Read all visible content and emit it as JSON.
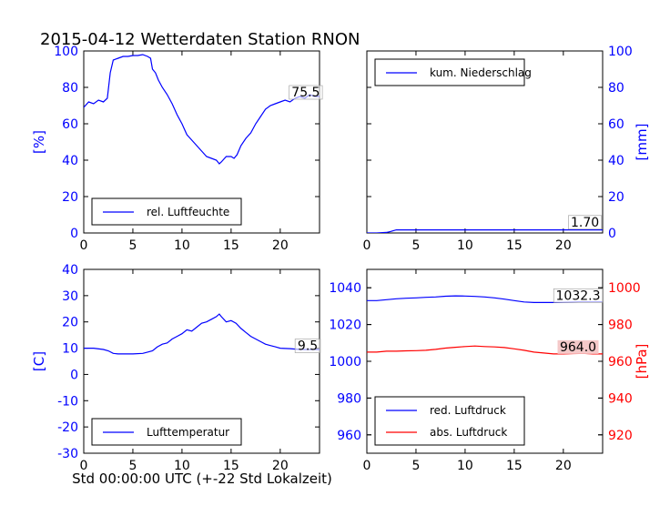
{
  "title": "2015-04-12 Wetterdaten Station RNON",
  "xlabel": "Std 00:00:00 UTC (+-22 Std Lokalzeit)",
  "colors": {
    "blue": "#0000ff",
    "red": "#ff0000",
    "axis": "#000000",
    "annot_bg_red": "#f4c8c8"
  },
  "chart_data": [
    {
      "id": "humidity",
      "type": "line",
      "xlim": [
        0,
        24
      ],
      "ylim": [
        0,
        100
      ],
      "xticks": [
        0,
        5,
        10,
        15,
        20
      ],
      "yticks": [
        0,
        20,
        40,
        60,
        80,
        100
      ],
      "ytick_side": "left",
      "ytick_color": "#0000ff",
      "ylabel": "[%]",
      "ylabel_side": "left",
      "ylabel_color": "#0000ff",
      "legend_position": "lower-left",
      "annotation": {
        "text": "75.5",
        "x": 22.6,
        "y": 76
      },
      "series": [
        {
          "name": "rel. Luftfeuchte",
          "color": "#0000ff",
          "x": [
            0,
            0.5,
            1,
            1.5,
            2,
            2.4,
            2.7,
            3,
            3.5,
            4,
            4.5,
            5,
            5.5,
            6,
            6.5,
            6.8,
            7,
            7.3,
            7.6,
            8,
            8.5,
            9,
            9.5,
            10,
            10.5,
            11,
            11.5,
            12,
            12.5,
            13,
            13.5,
            13.8,
            14,
            14.5,
            15,
            15.3,
            15.6,
            16,
            16.5,
            17,
            17.5,
            18,
            18.5,
            19,
            19.5,
            20,
            20.5,
            21,
            21.5,
            22,
            22.5,
            23,
            23.5,
            24
          ],
          "y": [
            69,
            72,
            71,
            73,
            72,
            74,
            88,
            95,
            96,
            97,
            97,
            97.5,
            97.5,
            98,
            97,
            96,
            90,
            88,
            84,
            80,
            76,
            71,
            65,
            60,
            54,
            51,
            48,
            45,
            42,
            41,
            40,
            38,
            39,
            42,
            42,
            41,
            43,
            48,
            52,
            55,
            60,
            64,
            68,
            70,
            71,
            72,
            73,
            72,
            74,
            75,
            74,
            76,
            75,
            75
          ]
        }
      ]
    },
    {
      "id": "precipitation",
      "type": "line",
      "xlim": [
        0,
        24
      ],
      "ylim": [
        0,
        100
      ],
      "xticks": [
        0,
        5,
        10,
        15,
        20
      ],
      "yticks": [
        0,
        20,
        40,
        60,
        80,
        100
      ],
      "ytick_side": "right",
      "ytick_color": "#0000ff",
      "ylabel": "[mm]",
      "ylabel_side": "right",
      "ylabel_color": "#0000ff",
      "legend_position": "upper-left",
      "annotation": {
        "text": "1.70",
        "x": 22.2,
        "y": 4.6
      },
      "series": [
        {
          "name": "kum. Niederschlag",
          "color": "#0000ff",
          "x": [
            0,
            1,
            2,
            2.4,
            2.8,
            3,
            5,
            8,
            10,
            12,
            15,
            18,
            20,
            22,
            24
          ],
          "y": [
            0,
            0,
            0.3,
            0.8,
            1.4,
            1.7,
            1.7,
            1.7,
            1.7,
            1.7,
            1.7,
            1.7,
            1.7,
            1.7,
            1.7
          ]
        }
      ]
    },
    {
      "id": "temperature",
      "type": "line",
      "xlim": [
        0,
        24
      ],
      "ylim": [
        -30,
        40
      ],
      "xticks": [
        0,
        5,
        10,
        15,
        20
      ],
      "yticks": [
        -30,
        -20,
        -10,
        0,
        10,
        20,
        30,
        40
      ],
      "ytick_side": "left",
      "ytick_color": "#0000ff",
      "ylabel": "[C]",
      "ylabel_side": "left",
      "ylabel_color": "#0000ff",
      "legend_position": "lower-left",
      "annotation": {
        "text": "9.5",
        "x": 22.8,
        "y": 10
      },
      "series": [
        {
          "name": "Lufttemperatur",
          "color": "#0000ff",
          "x": [
            0,
            1,
            2,
            2.5,
            3,
            3.5,
            4,
            5,
            6,
            6.5,
            7,
            7.5,
            8,
            8.5,
            9,
            9.5,
            10,
            10.5,
            11,
            11.5,
            12,
            12.5,
            13,
            13.5,
            13.8,
            14,
            14.5,
            15,
            15.5,
            16,
            16.5,
            17,
            17.5,
            18,
            18.5,
            19,
            19.5,
            20,
            21,
            22,
            23,
            24
          ],
          "y": [
            10,
            10,
            9.5,
            9,
            8,
            7.8,
            7.8,
            7.8,
            8,
            8.5,
            9,
            10.5,
            11.5,
            12,
            13.5,
            14.5,
            15.5,
            17,
            16.5,
            18,
            19.5,
            20,
            21,
            22,
            23,
            22,
            20,
            20.5,
            19.5,
            17.5,
            16,
            14.5,
            13.5,
            12.5,
            11.5,
            11,
            10.5,
            10,
            9.8,
            9.5,
            9.5,
            9.5
          ]
        }
      ]
    },
    {
      "id": "pressure",
      "type": "line",
      "xlim": [
        0,
        24
      ],
      "ylim_left": [
        950,
        1050
      ],
      "ylim_right": [
        910,
        1010
      ],
      "xticks": [
        0,
        5,
        10,
        15,
        20
      ],
      "yticks_left": [
        960,
        980,
        1000,
        1020,
        1040
      ],
      "yticks_left_color": "#0000ff",
      "yticks_right": [
        920,
        940,
        960,
        980,
        1000
      ],
      "yticks_right_color": "#ff0000",
      "ylabel": "[hPa]",
      "ylabel_side": "right",
      "ylabel_color": "#ff0000",
      "legend_position": "lower-left",
      "series": [
        {
          "name": "red. Luftdruck",
          "color": "#0000ff",
          "axis": "left",
          "annotation": {
            "text": "1032.3",
            "x": 21.5,
            "y": 1034.5
          },
          "x": [
            0,
            1,
            2,
            3,
            4,
            5,
            6,
            7,
            8,
            9,
            10,
            11,
            12,
            13,
            14,
            15,
            16,
            17,
            18,
            19,
            20,
            21,
            22,
            23,
            24
          ],
          "y": [
            1033,
            1033,
            1033.5,
            1034,
            1034.3,
            1034.5,
            1034.8,
            1035,
            1035.4,
            1035.6,
            1035.5,
            1035.3,
            1035,
            1034.5,
            1033.8,
            1033,
            1032.3,
            1032,
            1032,
            1032,
            1032.1,
            1032.2,
            1032.3,
            1032.3,
            1032.3
          ]
        },
        {
          "name": "abs. Luftdruck",
          "color": "#ff0000",
          "axis": "right",
          "annotation": {
            "text": "964.0",
            "x": 21.5,
            "y": 966.5
          },
          "x": [
            0,
            1,
            2,
            3,
            4,
            5,
            6,
            7,
            8,
            9,
            10,
            11,
            12,
            13,
            14,
            15,
            16,
            17,
            18,
            19,
            20,
            21,
            22,
            23,
            24
          ],
          "y": [
            965,
            965,
            965.5,
            965.5,
            965.7,
            965.8,
            966,
            966.5,
            967.2,
            967.6,
            968,
            968.3,
            968,
            967.8,
            967.5,
            966.8,
            966,
            965,
            964.5,
            964,
            964,
            964.2,
            964.3,
            964,
            964
          ]
        }
      ]
    }
  ]
}
